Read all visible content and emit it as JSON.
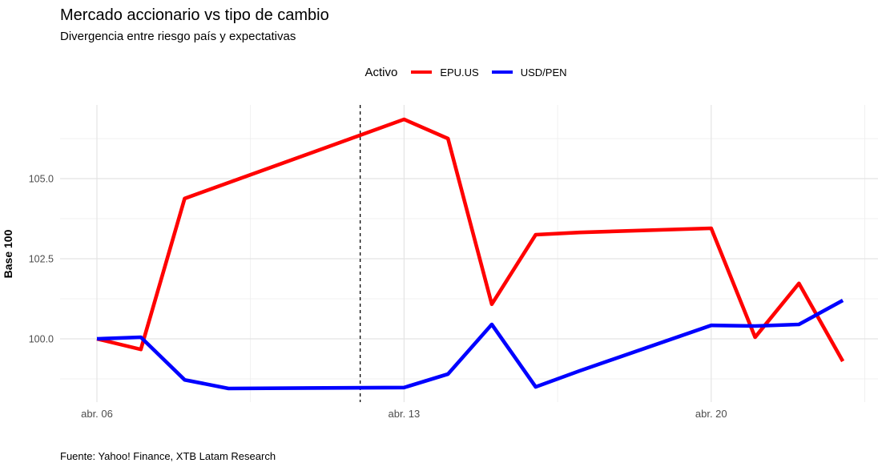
{
  "header": {
    "title": "Mercado accionario vs tipo de cambio",
    "subtitle": "Divergencia entre riesgo país y expectativas"
  },
  "caption": "Fuente: Yahoo! Finance, XTB Latam Research",
  "legend": {
    "title": "Activo",
    "position": "top-center",
    "items": [
      {
        "label": "EPU.US",
        "color": "#FF0000"
      },
      {
        "label": "USD/PEN",
        "color": "#0000FF"
      }
    ]
  },
  "colors": {
    "epu_us": "#FF0000",
    "usd_pen": "#0000FF",
    "grid_major": "#E4E4E4",
    "grid_minor": "#EDEDED",
    "tick_text": "#4D4D4D",
    "vline": "#000000",
    "background": "#FFFFFF"
  },
  "chart_data": {
    "type": "line",
    "title": "Mercado accionario vs tipo de cambio",
    "subtitle": "Divergencia entre riesgo país y expectativas",
    "caption": "Fuente: Yahoo! Finance, XTB Latam Research",
    "xlabel": "",
    "ylabel": "Base 100",
    "grid": true,
    "legend_title": "Activo",
    "legend_position": "top",
    "ylim": [
      98.0,
      107.3
    ],
    "xlim_days": [
      -0.85,
      17.8
    ],
    "x_axis": {
      "tick_labels": [
        "abr. 06",
        "abr. 13",
        "abr. 20"
      ],
      "tick_day_offsets": [
        0,
        7,
        14
      ],
      "minor_day_offsets": [
        3.5,
        10.5,
        17.5
      ]
    },
    "y_axis": {
      "tick_labels": [
        "100.0",
        "102.5",
        "105.0"
      ],
      "ticks": [
        100.0,
        102.5,
        105.0
      ],
      "minor_ticks": [
        98.75,
        101.25,
        103.75,
        106.25
      ]
    },
    "vline": {
      "date_label": "abr. 12",
      "day_offset": 6,
      "style": "dashed",
      "color": "#000000"
    },
    "series": [
      {
        "name": "EPU.US",
        "color": "#FF0000",
        "points": [
          {
            "date": "abr. 06",
            "day": 0,
            "value": 100.0
          },
          {
            "date": "abr. 07",
            "day": 1,
            "value": 99.67
          },
          {
            "date": "abr. 08",
            "day": 2,
            "value": 104.38
          },
          {
            "date": "abr. 13",
            "day": 7,
            "value": 106.85
          },
          {
            "date": "abr. 14",
            "day": 8,
            "value": 106.25
          },
          {
            "date": "abr. 15",
            "day": 9,
            "value": 101.08
          },
          {
            "date": "abr. 16",
            "day": 10,
            "value": 103.25
          },
          {
            "date": "abr. 17",
            "day": 11,
            "value": 103.32
          },
          {
            "date": "abr. 20",
            "day": 14,
            "value": 103.45
          },
          {
            "date": "abr. 21",
            "day": 15,
            "value": 100.05
          },
          {
            "date": "abr. 22",
            "day": 16,
            "value": 101.73
          },
          {
            "date": "abr. 23",
            "day": 17,
            "value": 99.3
          }
        ]
      },
      {
        "name": "USD/PEN",
        "color": "#0000FF",
        "points": [
          {
            "date": "abr. 06",
            "day": 0,
            "value": 100.0
          },
          {
            "date": "abr. 07",
            "day": 1,
            "value": 100.05
          },
          {
            "date": "abr. 08",
            "day": 2,
            "value": 98.72
          },
          {
            "date": "abr. 09",
            "day": 3,
            "value": 98.45
          },
          {
            "date": "abr. 13",
            "day": 7,
            "value": 98.48
          },
          {
            "date": "abr. 14",
            "day": 8,
            "value": 98.9
          },
          {
            "date": "abr. 15",
            "day": 9,
            "value": 100.45
          },
          {
            "date": "abr. 16",
            "day": 10,
            "value": 98.5
          },
          {
            "date": "abr. 17",
            "day": 11,
            "value": 99.0
          },
          {
            "date": "abr. 20",
            "day": 14,
            "value": 100.42
          },
          {
            "date": "abr. 21",
            "day": 15,
            "value": 100.4
          },
          {
            "date": "abr. 22",
            "day": 16,
            "value": 100.45
          },
          {
            "date": "abr. 23",
            "day": 17,
            "value": 101.2
          }
        ]
      }
    ]
  }
}
